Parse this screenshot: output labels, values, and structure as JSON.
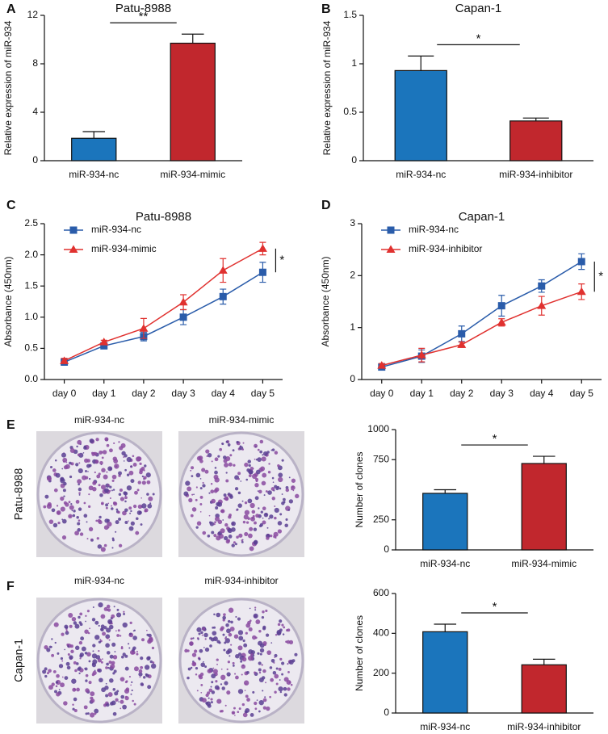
{
  "chart_data": [
    {
      "panel_label": "A",
      "type": "bar",
      "title": "Patu-8988",
      "y_label": "Relative expression of miR-934",
      "categories": [
        "miR-934-nc",
        "miR-934-mimic"
      ],
      "values": [
        1.85,
        9.7
      ],
      "errors": [
        0.55,
        0.75
      ],
      "colors": [
        "#1b75bc",
        "#c1272d"
      ],
      "ylim": [
        0,
        12
      ],
      "yticks": [
        0,
        4,
        8,
        12
      ],
      "annotation": "**"
    },
    {
      "panel_label": "B",
      "type": "bar",
      "title": "Capan-1",
      "y_label": "Relative expression of miR-934",
      "categories": [
        "miR-934-nc",
        "miR-934-inhibitor"
      ],
      "values": [
        0.93,
        0.41
      ],
      "errors": [
        0.15,
        0.03
      ],
      "colors": [
        "#1b75bc",
        "#c1272d"
      ],
      "ylim": [
        0,
        1.5
      ],
      "yticks": [
        0,
        0.5,
        1,
        1.5
      ],
      "annotation": "*"
    },
    {
      "panel_label": "C",
      "type": "line",
      "title": "Patu-8988",
      "y_label": "Absorbance (450nm)",
      "categories": [
        "day 0",
        "day 1",
        "day 2",
        "day 3",
        "day 4",
        "day 5"
      ],
      "series": [
        {
          "name": "miR-934-nc",
          "color": "#2a5caa",
          "marker": "square",
          "values": [
            0.28,
            0.54,
            0.69,
            1.0,
            1.33,
            1.72
          ],
          "errors": [
            0.05,
            0.04,
            0.07,
            0.12,
            0.12,
            0.16
          ]
        },
        {
          "name": "miR-934-mimic",
          "color": "#e0312f",
          "marker": "triangle",
          "values": [
            0.3,
            0.6,
            0.82,
            1.24,
            1.75,
            2.1
          ],
          "errors": [
            0.04,
            0.03,
            0.16,
            0.12,
            0.19,
            0.1
          ]
        }
      ],
      "ylim": [
        0,
        2.5
      ],
      "yticks": [
        {
          "value": 0,
          "label": "0.0"
        },
        0.5,
        {
          "value": 1,
          "label": "1.0"
        },
        1.5,
        {
          "value": 2,
          "label": "2.0"
        },
        2.5
      ],
      "legend": "upper-left",
      "annotation": "*"
    },
    {
      "panel_label": "D",
      "type": "line",
      "title": "Capan-1",
      "y_label": "Absorbance (450nm)",
      "categories": [
        "day 0",
        "day 1",
        "day 2",
        "day 3",
        "day 4",
        "day 5"
      ],
      "series": [
        {
          "name": "miR-934-nc",
          "color": "#2a5caa",
          "marker": "square",
          "values": [
            0.24,
            0.45,
            0.88,
            1.42,
            1.8,
            2.27
          ],
          "errors": [
            0.04,
            0.12,
            0.15,
            0.2,
            0.12,
            0.15
          ]
        },
        {
          "name": "miR-934-inhibitor",
          "color": "#e0312f",
          "marker": "triangle",
          "values": [
            0.27,
            0.47,
            0.67,
            1.1,
            1.42,
            1.69
          ],
          "errors": [
            0.04,
            0.13,
            0.05,
            0.07,
            0.18,
            0.15
          ]
        }
      ],
      "ylim": [
        0,
        3
      ],
      "yticks": [
        0,
        1,
        2,
        3
      ],
      "legend": "upper-left",
      "annotation": "*"
    },
    {
      "panel_label": "E",
      "type": "bar",
      "row_label": "Patu-8988",
      "photo_labels": [
        "miR-934-nc",
        "miR-934-mimic"
      ],
      "y_label": "Number of clones",
      "categories": [
        "miR-934-nc",
        "miR-934-mimic"
      ],
      "values": [
        470,
        718
      ],
      "errors": [
        30,
        60
      ],
      "colors": [
        "#1b75bc",
        "#c1272d"
      ],
      "ylim": [
        0,
        1000
      ],
      "yticks": [
        0,
        250,
        750,
        1000
      ],
      "annotation": "*"
    },
    {
      "panel_label": "F",
      "type": "bar",
      "row_label": "Capan-1",
      "photo_labels": [
        "miR-934-nc",
        "miR-934-inhibitor"
      ],
      "y_label": "Number of clones",
      "categories": [
        "miR-934-nc",
        "miR-934-inhibitor"
      ],
      "values": [
        408,
        242
      ],
      "errors": [
        38,
        28
      ],
      "colors": [
        "#1b75bc",
        "#c1272d"
      ],
      "ylim": [
        0,
        600
      ],
      "yticks": [
        0,
        200,
        400,
        600
      ],
      "annotation": "*"
    }
  ]
}
